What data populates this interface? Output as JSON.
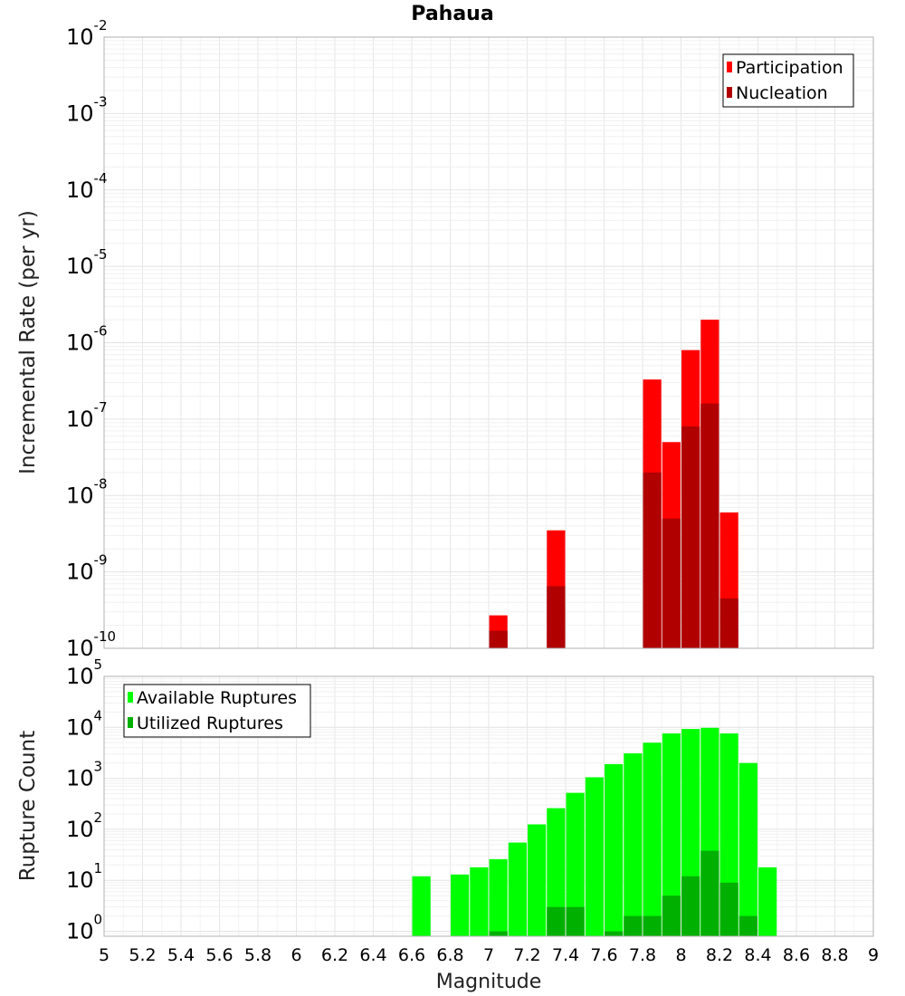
{
  "chart_data": [
    {
      "type": "bar",
      "title": "Pahaua",
      "ylabel": "Incremental Rate (per yr)",
      "xlabel": "",
      "y_scale": "log",
      "ylim": [
        1e-10,
        0.01
      ],
      "xlim": [
        5,
        9
      ],
      "grid": true,
      "legend_position": "top-right",
      "y_tick_exponents": [
        "-10",
        "-9",
        "-8",
        "-7",
        "-6",
        "-5",
        "-4",
        "-3",
        "-2"
      ],
      "series": [
        {
          "name": "Participation",
          "color": "#ff0000",
          "points": [
            {
              "x": 7.05,
              "y": 2.7e-10
            },
            {
              "x": 7.35,
              "y": 3.5e-09
            },
            {
              "x": 7.85,
              "y": 3.3e-07
            },
            {
              "x": 7.95,
              "y": 5e-08
            },
            {
              "x": 8.05,
              "y": 8e-07
            },
            {
              "x": 8.15,
              "y": 2e-06
            },
            {
              "x": 8.25,
              "y": 6e-09
            }
          ]
        },
        {
          "name": "Nucleation",
          "color": "#b00000",
          "points": [
            {
              "x": 7.05,
              "y": 1.7e-10
            },
            {
              "x": 7.35,
              "y": 6.5e-10
            },
            {
              "x": 7.85,
              "y": 2e-08
            },
            {
              "x": 7.95,
              "y": 5e-09
            },
            {
              "x": 8.05,
              "y": 8e-08
            },
            {
              "x": 8.15,
              "y": 1.6e-07
            },
            {
              "x": 8.25,
              "y": 4.5e-10
            }
          ]
        }
      ]
    },
    {
      "type": "bar",
      "title": "",
      "ylabel": "Rupture Count",
      "xlabel": "Magnitude",
      "y_scale": "log",
      "ylim": [
        0.8,
        100000.0
      ],
      "xlim": [
        5,
        9
      ],
      "grid": true,
      "legend_position": "top-left",
      "x_ticks": [
        "5",
        "5.2",
        "5.4",
        "5.6",
        "5.8",
        "6",
        "6.2",
        "6.4",
        "6.6",
        "6.8",
        "7",
        "7.2",
        "7.4",
        "7.6",
        "7.8",
        "8",
        "8.2",
        "8.4",
        "8.6",
        "8.8",
        "9"
      ],
      "y_tick_exponents": [
        "0",
        "1",
        "2",
        "3",
        "4",
        "5"
      ],
      "series": [
        {
          "name": "Available Ruptures",
          "color": "#00ff00",
          "points": [
            {
              "x": 6.65,
              "y": 12
            },
            {
              "x": 6.85,
              "y": 13
            },
            {
              "x": 6.95,
              "y": 18
            },
            {
              "x": 7.05,
              "y": 26
            },
            {
              "x": 7.15,
              "y": 55
            },
            {
              "x": 7.25,
              "y": 125
            },
            {
              "x": 7.35,
              "y": 260
            },
            {
              "x": 7.45,
              "y": 520
            },
            {
              "x": 7.55,
              "y": 1050
            },
            {
              "x": 7.65,
              "y": 1900
            },
            {
              "x": 7.75,
              "y": 3100
            },
            {
              "x": 7.85,
              "y": 5000
            },
            {
              "x": 7.95,
              "y": 7600
            },
            {
              "x": 8.05,
              "y": 9300
            },
            {
              "x": 8.15,
              "y": 9800
            },
            {
              "x": 8.25,
              "y": 7600
            },
            {
              "x": 8.35,
              "y": 2000
            },
            {
              "x": 8.45,
              "y": 18
            }
          ]
        },
        {
          "name": "Utilized Ruptures",
          "color": "#00b000",
          "points": [
            {
              "x": 7.05,
              "y": 1
            },
            {
              "x": 7.35,
              "y": 3
            },
            {
              "x": 7.45,
              "y": 3
            },
            {
              "x": 7.65,
              "y": 1
            },
            {
              "x": 7.75,
              "y": 2
            },
            {
              "x": 7.85,
              "y": 2
            },
            {
              "x": 7.95,
              "y": 5
            },
            {
              "x": 8.05,
              "y": 12
            },
            {
              "x": 8.15,
              "y": 38
            },
            {
              "x": 8.25,
              "y": 9
            },
            {
              "x": 8.35,
              "y": 2
            }
          ]
        }
      ]
    }
  ]
}
